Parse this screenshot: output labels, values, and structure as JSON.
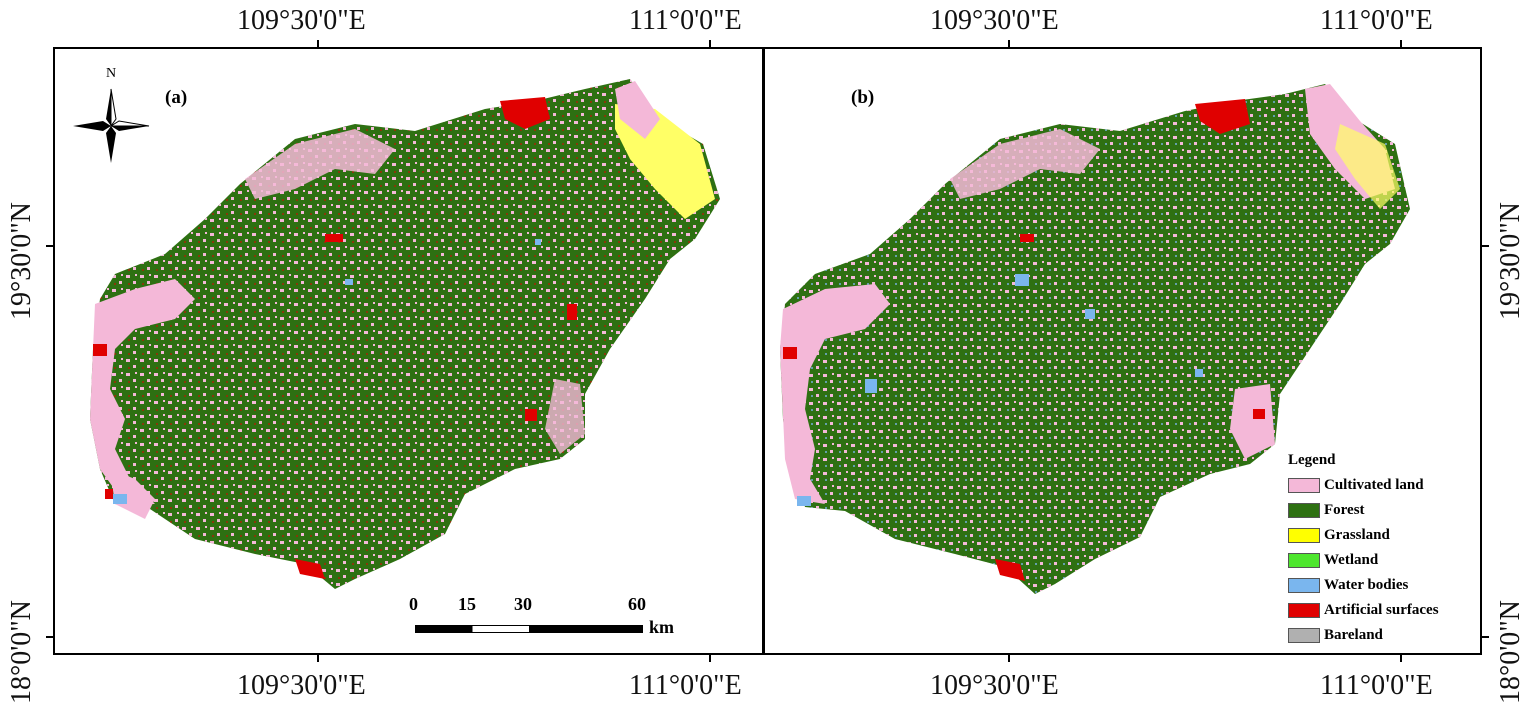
{
  "coordinates": {
    "lon_west": "109°30'0\"E",
    "lon_east": "111°0'0\"E",
    "lat_north": "19°30'0\"N",
    "lat_south": "18°0'0\"N"
  },
  "panels": [
    {
      "label": "(a)"
    },
    {
      "label": "(b)"
    }
  ],
  "north_arrow": {
    "label": "N"
  },
  "scale_bar": {
    "ticks": [
      "0",
      "15",
      "30",
      "60"
    ],
    "unit": "km"
  },
  "legend": {
    "title": "Legend",
    "items": [
      {
        "label": "Cultivated land",
        "color": "#f4b8d8"
      },
      {
        "label": "Forest",
        "color": "#2e7012"
      },
      {
        "label": "Grassland",
        "color": "#ffff00"
      },
      {
        "label": "Wetland",
        "color": "#4ee62e"
      },
      {
        "label": "Water bodies",
        "color": "#7ab6ee"
      },
      {
        "label": "Artificial surfaces",
        "color": "#e00000"
      },
      {
        "label": "Bareland",
        "color": "#b0b0b0"
      }
    ]
  }
}
